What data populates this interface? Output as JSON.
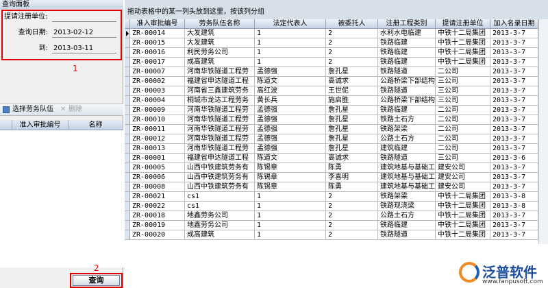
{
  "left_panel": {
    "title": "查询面板",
    "fields": [
      {
        "label": "提请注册单位:",
        "value": ""
      },
      {
        "label": "查询日期:",
        "value": "2013-02-12"
      },
      {
        "label": "到:",
        "value": "2013-03-11"
      }
    ],
    "annotation_1": "1",
    "toolbar": {
      "select": "选择劳务队伍",
      "delete": "删除"
    },
    "list_columns": [
      "准入审批编号",
      "名称"
    ],
    "annotation_2": "2",
    "query_button": "查询"
  },
  "group_hint": "拖动表格中的某一列头放到这里，按该列分组",
  "table": {
    "columns": [
      "准入审批编号",
      "劳务队伍名称",
      "法定代表人",
      "被委托人",
      "注册工程类别",
      "提请注册单位",
      "加入名录日期"
    ],
    "rows": [
      [
        "ZR-00014",
        "大发建筑",
        "1",
        "2",
        "水利水电临建",
        "中铁十二局集团",
        "2013-3-7"
      ],
      [
        "ZR-00015",
        "大发建筑",
        "1",
        "2",
        "铁路临建",
        "中铁十二局集团",
        "2013-3-7"
      ],
      [
        "ZR-00016",
        "利民劳务公司",
        "1",
        "2",
        "铁路临建",
        "中铁十二局集团",
        "2013-3-7"
      ],
      [
        "ZR-00017",
        "成高建筑",
        "1",
        "2",
        "铁路临建",
        "中铁十二局集团",
        "2013-3-7"
      ],
      [
        "ZR-00007",
        "河南华铁隧道工程劳",
        "孟德强",
        "詹孔星",
        "铁路隧道",
        "二公司",
        "2013-3-7"
      ],
      [
        "ZR-00002",
        "福建省申达隧道工程",
        "陈道文",
        "高诚求",
        "公路桥梁下部结构",
        "三公司",
        "2013-3-7"
      ],
      [
        "ZR-00003",
        "河南省三鑫建筑劳务",
        "高红波",
        "王世伲",
        "铁路隧道",
        "三公司",
        "2013-3-7"
      ],
      [
        "ZR-00004",
        "桐城市龙达工程劳务",
        "黄长兵",
        "施启胜",
        "公路桥梁下部结构",
        "三公司",
        "2013-3-7"
      ],
      [
        "ZR-00009",
        "河南华铁隧道工程劳",
        "孟德强",
        "詹孔星",
        "铁路临建",
        "二公司",
        "2013-3-7"
      ],
      [
        "ZR-00010",
        "河南华铁隧道工程劳",
        "孟德强",
        "詹孔星",
        "铁路土石方",
        "二公司",
        "2013-3-7"
      ],
      [
        "ZR-00011",
        "河南华铁隧道工程劳",
        "孟德强",
        "詹孔星",
        "铁路架梁",
        "二公司",
        "2013-3-7"
      ],
      [
        "ZR-00012",
        "河南华铁隧道工程劳",
        "孟德强",
        "詹孔星",
        "公路土石方",
        "二公司",
        "2013-3-7"
      ],
      [
        "ZR-00013",
        "河南华铁隧道工程劳",
        "孟德强",
        "詹孔星",
        "建筑临建",
        "二公司",
        "2013-3-7"
      ],
      [
        "ZR-00001",
        "福建省申达隧道工程",
        "陈道文",
        "高诚求",
        "铁路隧道",
        "三公司",
        "2013-3-6"
      ],
      [
        "ZR-00005",
        "山西中铁建筑劳务有",
        "陈锡章",
        "陈勇",
        "建筑地基与基础工",
        "建安公司",
        "2013-3-7"
      ],
      [
        "ZR-00006",
        "山西中铁建筑劳务有",
        "陈锡章",
        "李喜明",
        "建筑地基与基础工",
        "建安公司",
        "2013-3-7"
      ],
      [
        "ZR-00008",
        "山西中铁建筑劳务有",
        "陈锡章",
        "陈勇",
        "建筑地基与基础工",
        "建安公司",
        "2013-3-7"
      ],
      [
        "ZR-00021",
        "cs1",
        "1",
        "2",
        "铁路架梁",
        "中铁十二局集团",
        "2013-3-8"
      ],
      [
        "ZR-00022",
        "cs1",
        "1",
        "2",
        "铁路现浇梁",
        "中铁十二局集团",
        "2013-3-8"
      ],
      [
        "ZR-00018",
        "地鑫劳务公司",
        "1",
        "2",
        "公路土石方",
        "中铁十二局集团",
        "2013-3-7"
      ],
      [
        "ZR-00019",
        "地鑫劳务公司",
        "1",
        "2",
        "铁路临建",
        "中铁十二局集团",
        "2013-3-7"
      ],
      [
        "ZR-00020",
        "成高建筑",
        "1",
        "2",
        "铁路隧道",
        "中铁十二局集团",
        "2013-3-7"
      ]
    ]
  },
  "logo": {
    "name": "泛普软件",
    "url": "www.fanpusoft.com"
  }
}
